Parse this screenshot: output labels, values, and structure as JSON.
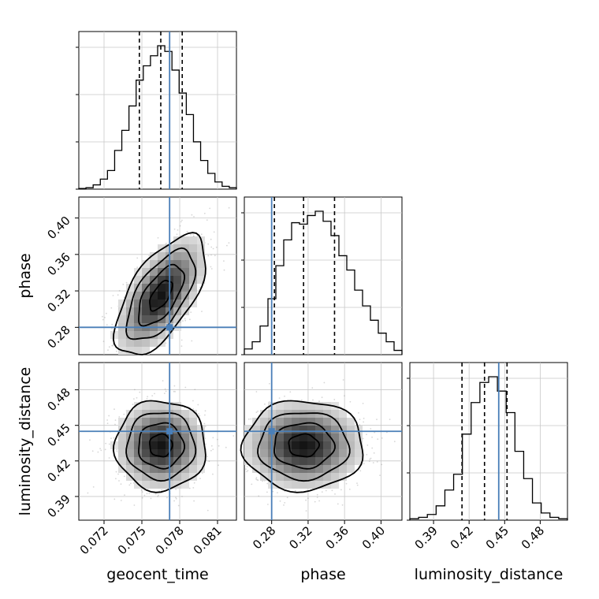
{
  "chart_data": {
    "type": "corner",
    "parameters": [
      "geocent_time",
      "phase",
      "luminosity_distance"
    ],
    "truth": {
      "geocent_time": 0.0772,
      "phase": 0.28,
      "luminosity_distance": 0.445
    },
    "colors": {
      "truth": "#4a7fb8",
      "hist": "#000000",
      "grid": "#c8c8c8"
    },
    "axes": {
      "geocent_time": {
        "range": [
          0.07,
          0.0825
        ],
        "ticks": [
          0.072,
          0.075,
          0.078,
          0.081
        ],
        "tick_labels": [
          "0.072",
          "0.075",
          "0.078",
          "0.081"
        ],
        "label": "geocent_time"
      },
      "phase": {
        "range": [
          0.25,
          0.423
        ],
        "ticks": [
          0.28,
          0.32,
          0.36,
          0.4
        ],
        "tick_labels": [
          "0.28",
          "0.32",
          "0.36",
          "0.40"
        ],
        "label": "phase"
      },
      "luminosity_distance": {
        "range": [
          0.37,
          0.503
        ],
        "ticks": [
          0.39,
          0.42,
          0.45,
          0.48
        ],
        "tick_labels": [
          "0.39",
          "0.42",
          "0.45",
          "0.48"
        ],
        "label": "luminosity_distance"
      }
    },
    "marginals": [
      {
        "parameter": "geocent_time",
        "quantiles": [
          0.0748,
          0.0765,
          0.0782
        ],
        "hist": [
          0.005,
          0.01,
          0.03,
          0.07,
          0.13,
          0.27,
          0.41,
          0.58,
          0.76,
          0.86,
          0.93,
          1.0,
          0.96,
          0.83,
          0.67,
          0.52,
          0.33,
          0.2,
          0.11,
          0.05,
          0.02,
          0.01
        ]
      },
      {
        "parameter": "phase",
        "quantiles": [
          0.283,
          0.315,
          0.349
        ],
        "hist": [
          0.04,
          0.09,
          0.2,
          0.39,
          0.62,
          0.8,
          0.92,
          0.91,
          0.97,
          1.0,
          0.93,
          0.83,
          0.69,
          0.59,
          0.45,
          0.34,
          0.24,
          0.15,
          0.09,
          0.03
        ]
      },
      {
        "parameter": "luminosity_distance",
        "quantiles": [
          0.414,
          0.433,
          0.452
        ],
        "hist": [
          0.01,
          0.02,
          0.04,
          0.1,
          0.21,
          0.32,
          0.6,
          0.82,
          0.96,
          1.0,
          0.9,
          0.75,
          0.48,
          0.29,
          0.12,
          0.05,
          0.02,
          0.01
        ]
      }
    ],
    "joints": [
      {
        "x": "geocent_time",
        "y": "phase",
        "center": [
          0.0765,
          0.315
        ],
        "sigma": [
          0.0018,
          0.033
        ],
        "rho": 0.62
      },
      {
        "x": "geocent_time",
        "y": "luminosity_distance",
        "center": [
          0.0765,
          0.433
        ],
        "sigma": [
          0.0018,
          0.019
        ],
        "rho": 0.0
      },
      {
        "x": "phase",
        "y": "luminosity_distance",
        "center": [
          0.315,
          0.433
        ],
        "sigma": [
          0.033,
          0.019
        ],
        "rho": 0.0
      }
    ]
  }
}
